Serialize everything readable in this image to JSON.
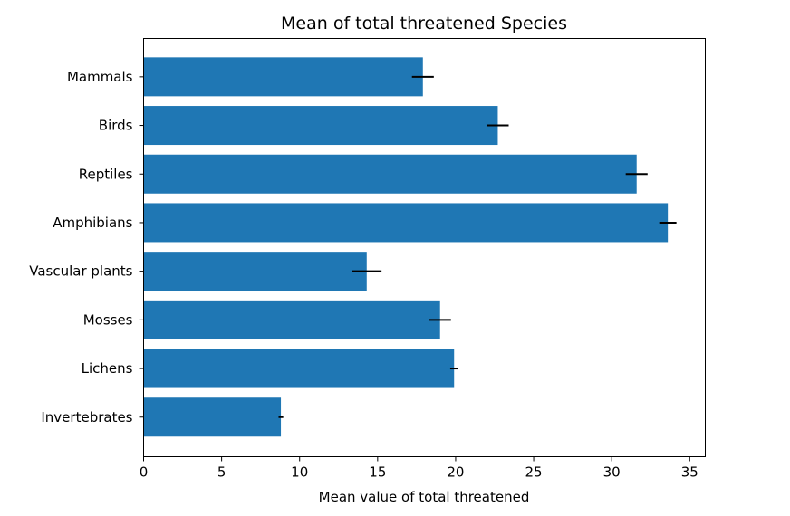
{
  "chart_data": {
    "type": "bar",
    "orientation": "horizontal",
    "title": "Mean of total threatened Species",
    "xlabel": "Mean value of total threatened",
    "ylabel": "",
    "xlim": [
      0,
      36
    ],
    "xticks": [
      0,
      5,
      10,
      15,
      20,
      25,
      30,
      35
    ],
    "grid": false,
    "bar_color": "#1f77b4",
    "errorbar_color": "#000000",
    "categories": [
      "Mammals",
      "Birds",
      "Reptiles",
      "Amphibians",
      "Vascular plants",
      "Mosses",
      "Lichens",
      "Invertebrates"
    ],
    "values": [
      17.9,
      22.7,
      31.6,
      33.6,
      14.3,
      19.0,
      19.9,
      8.8
    ],
    "errors": [
      0.7,
      0.7,
      0.7,
      0.55,
      0.95,
      0.7,
      0.25,
      0.15
    ]
  }
}
